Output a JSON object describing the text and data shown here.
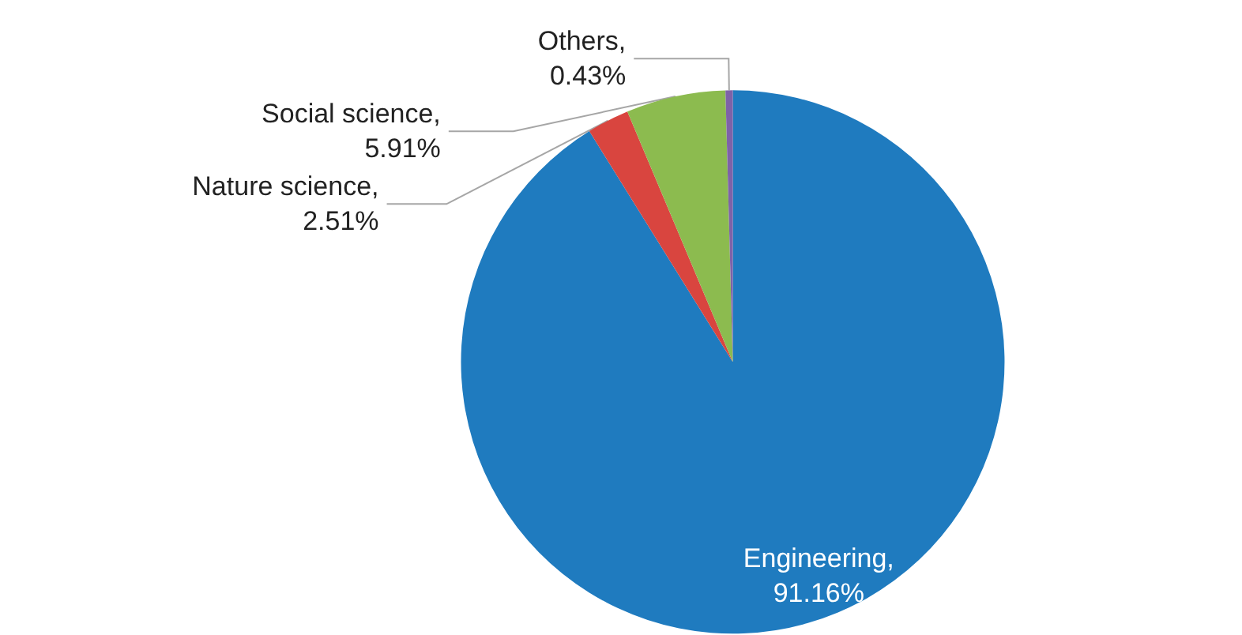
{
  "chart_data": {
    "type": "pie",
    "categories": [
      "Engineering",
      "Nature science",
      "Social science",
      "Others"
    ],
    "values": [
      91.16,
      2.51,
      5.91,
      0.43
    ],
    "colors": [
      "#1f7bbf",
      "#d9453f",
      "#8cbb4f",
      "#7e62a8"
    ],
    "value_labels": [
      ",\n91.16%",
      ",\n2.51%",
      ",\n5.91%",
      ",\n0.43%"
    ],
    "legend": false
  }
}
